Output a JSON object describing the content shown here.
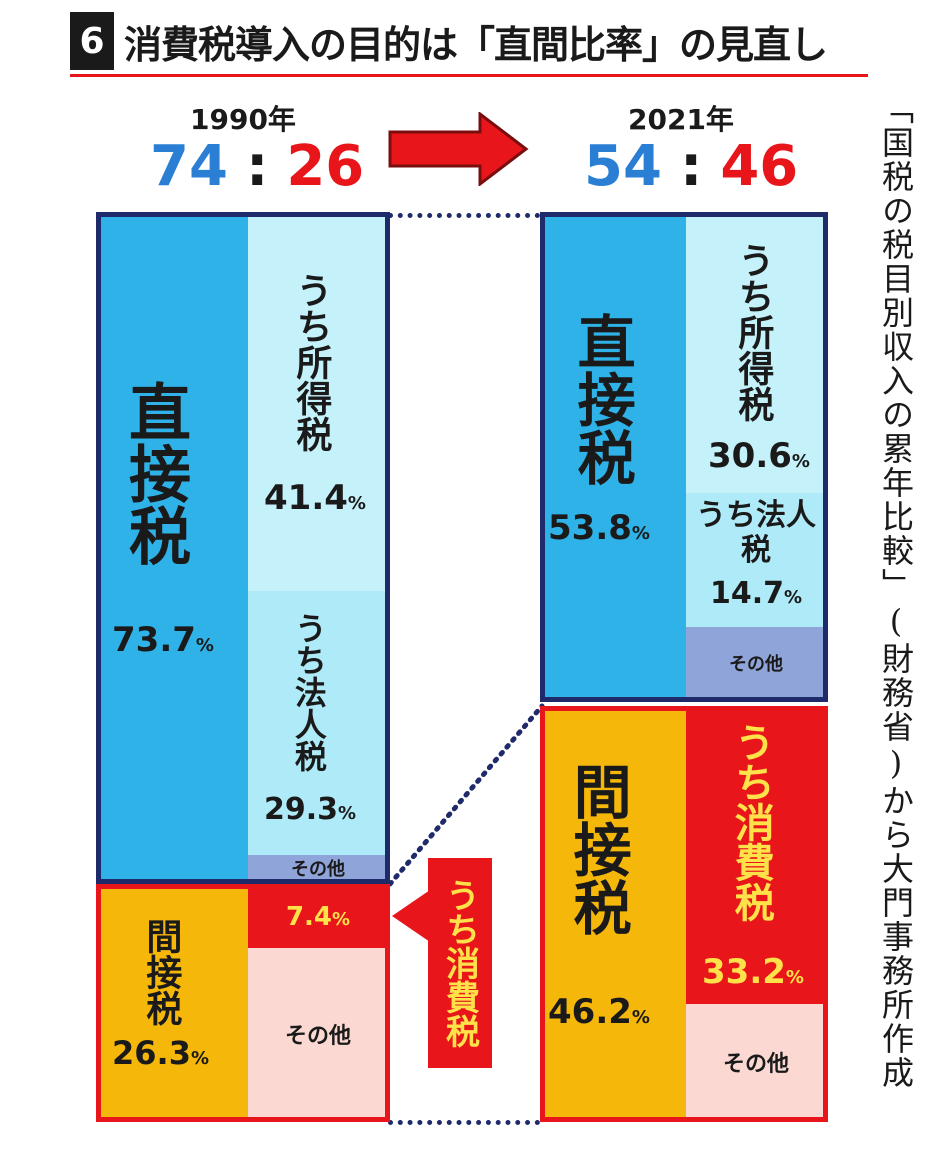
{
  "header": {
    "number": "6",
    "title": "消費税導入の目的は「直間比率」の見直し"
  },
  "source_note": "「国税の税目別収入の累年比較」(財務省)から大門事務所作成",
  "colors": {
    "direct": "#2eb2e8",
    "direct_sub": "#c5f1fa",
    "other_direct": "#8fa4d8",
    "indirect": "#f5b80a",
    "consumption": "#e8161a",
    "other_indirect": "#fbd9d2",
    "frame_direct": "#1f2a6b",
    "frame_indirect": "#e8161a"
  },
  "chart_data": [
    {
      "type": "bar",
      "year": "1990年",
      "ratio": {
        "direct": "74",
        "indirect": "26",
        "sep": ":"
      },
      "direct": {
        "label": "直接税",
        "value": 73.7,
        "pct": "73.7%",
        "breakdown": [
          {
            "label": "うち所得税",
            "value": 41.4,
            "pct": "41.4%"
          },
          {
            "label": "うち法人税",
            "value": 29.3,
            "pct": "29.3%"
          },
          {
            "label": "その他",
            "value": 3.0
          }
        ]
      },
      "indirect": {
        "label": "間接税",
        "value": 26.3,
        "pct": "26.3%",
        "breakdown": [
          {
            "label": "うち消費税",
            "value": 7.4,
            "pct": "7.4%"
          },
          {
            "label": "その他",
            "value": 18.9
          }
        ]
      }
    },
    {
      "type": "bar",
      "year": "2021年",
      "ratio": {
        "direct": "54",
        "indirect": "46",
        "sep": ":"
      },
      "direct": {
        "label": "直接税",
        "value": 53.8,
        "pct": "53.8%",
        "breakdown": [
          {
            "label": "うち所得税",
            "value": 30.6,
            "pct": "30.6%"
          },
          {
            "label": "うち法人税",
            "value": 14.7,
            "pct": "14.7%"
          },
          {
            "label": "その他",
            "value": 8.5
          }
        ]
      },
      "indirect": {
        "label": "間接税",
        "value": 46.2,
        "pct": "46.2%",
        "breakdown": [
          {
            "label": "うち消費税",
            "value": 33.2,
            "pct": "33.2%"
          },
          {
            "label": "その他",
            "value": 13.0
          }
        ]
      }
    }
  ],
  "callout": {
    "label": "うち消費税"
  },
  "pct_sign": "%"
}
